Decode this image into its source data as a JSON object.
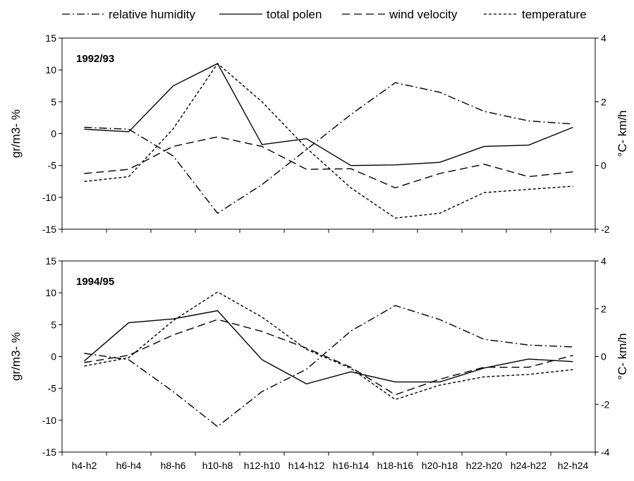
{
  "legend": [
    {
      "label": "relative humidity",
      "style": "dashdot"
    },
    {
      "label": "total polen",
      "style": "solid"
    },
    {
      "label": "wind velocity",
      "style": "dashed"
    },
    {
      "label": "temperature",
      "style": "dotted"
    }
  ],
  "chart_data": [
    {
      "type": "line",
      "title": "1992/93",
      "categories": [
        "h4-h2",
        "h6-h4",
        "h8-h6",
        "h10-h8",
        "h12-h10",
        "h14-h12",
        "h16-h14",
        "h18-h16",
        "h20-h18",
        "h22-h20",
        "h24-h22",
        "h2-h24"
      ],
      "ylabel": "gr/m3- %",
      "y2label": "°C- km/h",
      "ylim": [
        -15,
        15
      ],
      "y2lim": [
        -2,
        4
      ],
      "yticks": [
        -15,
        -10,
        -5,
        0,
        5,
        10,
        15
      ],
      "y2ticks": [
        -2,
        0,
        2,
        4
      ],
      "series": [
        {
          "name": "relative humidity",
          "axis": "left",
          "values": [
            1.0,
            0.7,
            -3.5,
            -12.5,
            -8.0,
            -2.5,
            3.0,
            8.0,
            6.5,
            3.5,
            2.0,
            1.5
          ]
        },
        {
          "name": "total polen",
          "axis": "left",
          "values": [
            0.7,
            0.3,
            7.5,
            11.0,
            -1.7,
            -0.8,
            -5.0,
            -4.9,
            -4.5,
            -2.0,
            -1.8,
            1.0
          ]
        },
        {
          "name": "wind velocity",
          "axis": "right",
          "values": [
            -0.25,
            -0.12,
            0.6,
            0.9,
            0.6,
            -0.12,
            -0.1,
            -0.7,
            -0.25,
            0.04,
            -0.35,
            -0.2
          ]
        },
        {
          "name": "temperature",
          "axis": "right",
          "values": [
            -0.5,
            -0.35,
            1.15,
            3.2,
            2.0,
            0.55,
            -0.7,
            -1.65,
            -1.5,
            -0.85,
            -0.75,
            -0.65
          ]
        }
      ]
    },
    {
      "type": "line",
      "title": "1994/95",
      "categories": [
        "h4-h2",
        "h6-h4",
        "h8-h6",
        "h10-h8",
        "h12-h10",
        "h14-h12",
        "h16-h14",
        "h18-h16",
        "h20-h18",
        "h22-h20",
        "h24-h22",
        "h2-h24"
      ],
      "ylabel": "gr/m3- %",
      "y2label": "°C- km/h",
      "ylim": [
        -15,
        15
      ],
      "y2lim": [
        -4,
        4
      ],
      "yticks": [
        -15,
        -10,
        -5,
        0,
        5,
        10,
        15
      ],
      "y2ticks": [
        -4,
        -2,
        0,
        2,
        4
      ],
      "series": [
        {
          "name": "relative humidity",
          "axis": "left",
          "values": [
            0.5,
            -0.5,
            -5.5,
            -11.0,
            -5.5,
            -2.0,
            4.0,
            8.0,
            5.8,
            2.7,
            1.8,
            1.5
          ]
        },
        {
          "name": "total polen",
          "axis": "left",
          "values": [
            -0.7,
            5.3,
            5.9,
            7.2,
            -0.5,
            -4.3,
            -2.4,
            -4.0,
            -4.0,
            -1.8,
            -0.4,
            -0.8
          ]
        },
        {
          "name": "wind velocity",
          "axis": "right",
          "values": [
            -0.25,
            0.05,
            0.9,
            1.55,
            1.05,
            0.35,
            -0.45,
            -1.6,
            -0.95,
            -0.45,
            -0.45,
            0.05
          ]
        },
        {
          "name": "temperature",
          "axis": "right",
          "values": [
            -0.4,
            -0.05,
            1.5,
            2.7,
            1.65,
            0.3,
            -0.5,
            -1.8,
            -1.2,
            -0.85,
            -0.75,
            -0.55
          ]
        }
      ]
    }
  ]
}
